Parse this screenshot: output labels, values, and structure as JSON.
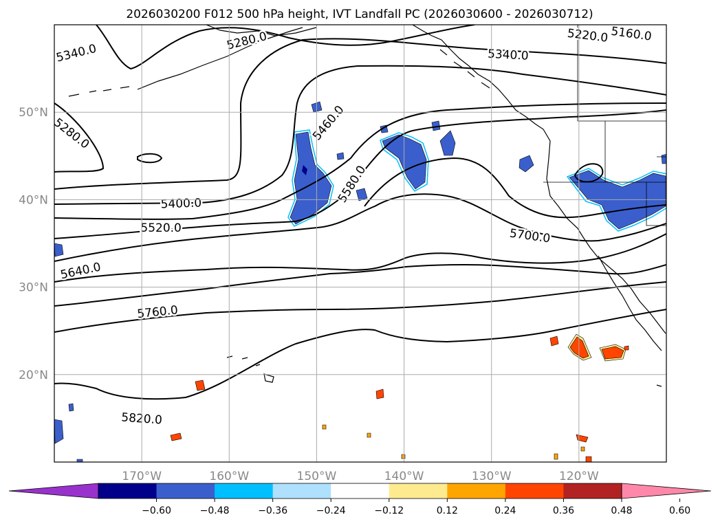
{
  "chart_data": {
    "type": "contour-map",
    "title": "2026030200 F012 500 hPa height, IVT Landfall PC (2026030600 - 2026030712)",
    "lon_range": [
      -180,
      -110
    ],
    "lat_range": [
      10,
      60
    ],
    "lon_ticks": [
      {
        "value": -170,
        "label": "170°W"
      },
      {
        "value": -160,
        "label": "160°W"
      },
      {
        "value": -150,
        "label": "150°W"
      },
      {
        "value": -140,
        "label": "140°W"
      },
      {
        "value": -130,
        "label": "130°W"
      },
      {
        "value": -120,
        "label": "120°W"
      }
    ],
    "lat_ticks": [
      {
        "value": 50,
        "label": "50°N"
      },
      {
        "value": 40,
        "label": "40°N"
      },
      {
        "value": 30,
        "label": "30°N"
      },
      {
        "value": 20,
        "label": "20°N"
      }
    ],
    "grid": true,
    "height_contours": [
      {
        "value": "5160.0",
        "lon": -114,
        "lat": 59
      },
      {
        "value": "5220.0",
        "lon": -119,
        "lat": 58.8
      },
      {
        "value": "5280.0",
        "lon": -158,
        "lat": 58.2
      },
      {
        "value": "5340.0",
        "lon": -177.5,
        "lat": 56.8
      },
      {
        "value": "5340.0",
        "lon": -128.1,
        "lat": 56.6
      },
      {
        "value": "5280.0",
        "lon": -178,
        "lat": 47.6
      },
      {
        "value": "5460.0",
        "lon": -148.7,
        "lat": 48.8
      },
      {
        "value": "5400.0",
        "lon": -165.5,
        "lat": 39.6
      },
      {
        "value": "5580.0",
        "lon": -146,
        "lat": 41.8
      },
      {
        "value": "5520.0",
        "lon": -167.8,
        "lat": 36.8
      },
      {
        "value": "5700.0",
        "lon": -125.6,
        "lat": 35.9
      },
      {
        "value": "5640.0",
        "lon": -177,
        "lat": 31.9
      },
      {
        "value": "5760.0",
        "lon": -168.2,
        "lat": 27.2
      },
      {
        "value": "5820.0",
        "lon": -170,
        "lat": 15
      }
    ],
    "colorbar": {
      "ticks": [
        "−0.60",
        "−0.48",
        "−0.36",
        "−0.24",
        "−0.12",
        "0.12",
        "0.24",
        "0.36",
        "0.48",
        "0.60"
      ],
      "tick_values": [
        -0.6,
        -0.48,
        -0.36,
        -0.24,
        -0.12,
        0.12,
        0.24,
        0.36,
        0.48,
        0.6
      ],
      "colors": [
        "#9932cc",
        "#00008b",
        "#3a5fcd",
        "#00bfff",
        "#afe1ff",
        "#ffffff",
        "#ffeb8f",
        "#ffa500",
        "#ff4500",
        "#b22222",
        "#ff88aa"
      ]
    }
  }
}
